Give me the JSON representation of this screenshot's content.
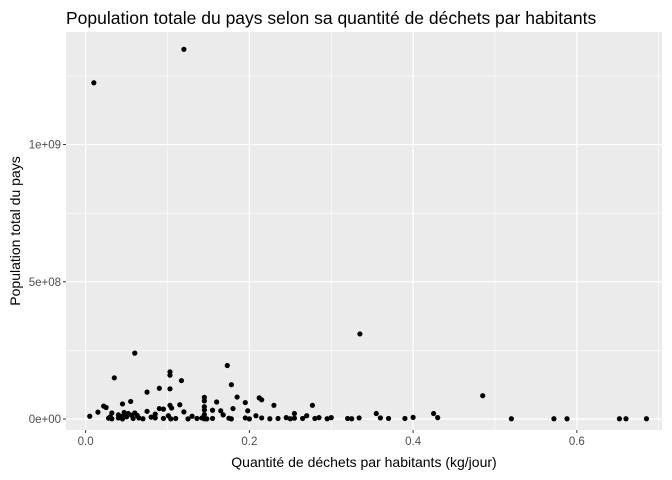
{
  "chart_data": {
    "type": "scatter",
    "title": "Population totale du pays selon sa quantité de déchets par habitants",
    "xlabel": "Quantité de déchets par habitants (kg/jour)",
    "ylabel": "Population total du pays",
    "xlim": [
      -0.024,
      0.704
    ],
    "ylim": [
      -40000000,
      1410000000
    ],
    "x_ticks": [
      0.0,
      0.2,
      0.4,
      0.6
    ],
    "x_tick_labels": [
      "0.0",
      "0.2",
      "0.4",
      "0.6"
    ],
    "y_ticks": [
      0,
      500000000,
      1000000000
    ],
    "y_tick_labels": [
      "0e+00",
      "5e+08",
      "1e+09"
    ],
    "grid": true,
    "legend": "none",
    "colors": {
      "panel": "#ebebeb",
      "grid_major": "#ffffff",
      "point": "#000000"
    },
    "points": [
      [
        0.01,
        1225000000
      ],
      [
        0.12,
        1347000000
      ],
      [
        0.335,
        310000000
      ],
      [
        0.06,
        240000000
      ],
      [
        0.173,
        195000000
      ],
      [
        0.103,
        172000000
      ],
      [
        0.103,
        160000000
      ],
      [
        0.035,
        150000000
      ],
      [
        0.117,
        140000000
      ],
      [
        0.178,
        125000000
      ],
      [
        0.103,
        110000000
      ],
      [
        0.09,
        112000000
      ],
      [
        0.075,
        98000000
      ],
      [
        0.485,
        85000000
      ],
      [
        0.185,
        80000000
      ],
      [
        0.145,
        79000000
      ],
      [
        0.212,
        77000000
      ],
      [
        0.215,
        70000000
      ],
      [
        0.145,
        66000000
      ],
      [
        0.055,
        64000000
      ],
      [
        0.16,
        62000000
      ],
      [
        0.195,
        60000000
      ],
      [
        0.045,
        55000000
      ],
      [
        0.115,
        52000000
      ],
      [
        0.23,
        50000000
      ],
      [
        0.277,
        50000000
      ],
      [
        0.103,
        50000000
      ],
      [
        0.022,
        47000000
      ],
      [
        0.145,
        45000000
      ],
      [
        0.025,
        42000000
      ],
      [
        0.105,
        40000000
      ],
      [
        0.09,
        38000000
      ],
      [
        0.18,
        38000000
      ],
      [
        0.095,
        36000000
      ],
      [
        0.145,
        33000000
      ],
      [
        0.155,
        32000000
      ],
      [
        0.165,
        30000000
      ],
      [
        0.198,
        30000000
      ],
      [
        0.075,
        28000000
      ],
      [
        0.12,
        26000000
      ],
      [
        0.015,
        25000000
      ],
      [
        0.047,
        24000000
      ],
      [
        0.06,
        22000000
      ],
      [
        0.032,
        22000000
      ],
      [
        0.052,
        20000000
      ],
      [
        0.255,
        20000000
      ],
      [
        0.355,
        20000000
      ],
      [
        0.425,
        20000000
      ],
      [
        0.085,
        18000000
      ],
      [
        0.145,
        16000000
      ],
      [
        0.168,
        15000000
      ],
      [
        0.04,
        15000000
      ],
      [
        0.056,
        14000000
      ],
      [
        0.063,
        13000000
      ],
      [
        0.27,
        12000000
      ],
      [
        0.208,
        12000000
      ],
      [
        0.101,
        12000000
      ],
      [
        0.13,
        10000000
      ],
      [
        0.005,
        10000000
      ],
      [
        0.045,
        10000000
      ],
      [
        0.05,
        8000000
      ],
      [
        0.03,
        8000000
      ],
      [
        0.08,
        7000000
      ],
      [
        0.4,
        6000000
      ],
      [
        0.43,
        5000000
      ],
      [
        0.245,
        5000000
      ],
      [
        0.285,
        5000000
      ],
      [
        0.3,
        5000000
      ],
      [
        0.36,
        4000000
      ],
      [
        0.334,
        4000000
      ],
      [
        0.215,
        4000000
      ],
      [
        0.195,
        4000000
      ],
      [
        0.142,
        4000000
      ],
      [
        0.085,
        4000000
      ],
      [
        0.065,
        4000000
      ],
      [
        0.04,
        4000000
      ],
      [
        0.028,
        3000000
      ],
      [
        0.175,
        3000000
      ],
      [
        0.255,
        3000000
      ],
      [
        0.28,
        2000000
      ],
      [
        0.235,
        2000000
      ],
      [
        0.32,
        2000000
      ],
      [
        0.37,
        2000000
      ],
      [
        0.39,
        2000000
      ],
      [
        0.265,
        2000000
      ],
      [
        0.155,
        2000000
      ],
      [
        0.095,
        2000000
      ],
      [
        0.058,
        2000000
      ],
      [
        0.11,
        2000000
      ],
      [
        0.136,
        2000000
      ],
      [
        0.145,
        1000000
      ],
      [
        0.225,
        1000000
      ],
      [
        0.25,
        1000000
      ],
      [
        0.295,
        1000000
      ],
      [
        0.325,
        1000000
      ],
      [
        0.52,
        1000000
      ],
      [
        0.572,
        1000000
      ],
      [
        0.588,
        1000000
      ],
      [
        0.652,
        1000000
      ],
      [
        0.66,
        1000000
      ],
      [
        0.685,
        1000000
      ],
      [
        0.032,
        1000000
      ],
      [
        0.07,
        1000000
      ],
      [
        0.2,
        500000
      ],
      [
        0.125,
        500000
      ],
      [
        0.178,
        500000
      ],
      [
        0.104,
        500000
      ],
      [
        0.045,
        500000
      ],
      [
        0.148,
        500000
      ]
    ]
  }
}
